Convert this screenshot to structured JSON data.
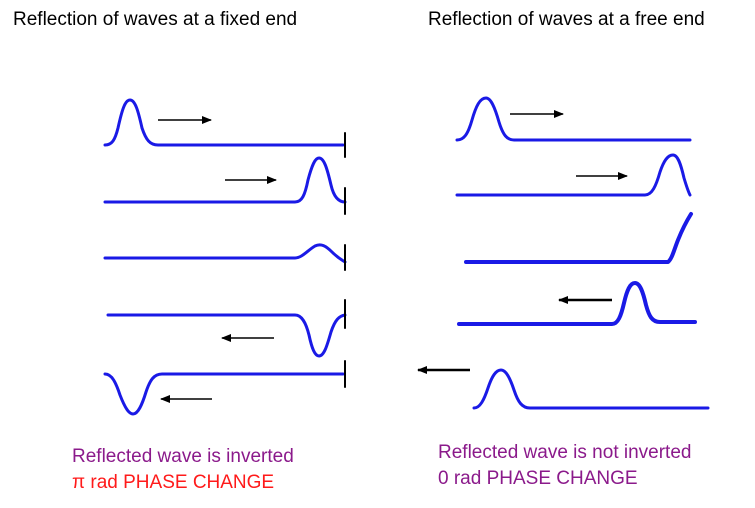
{
  "left_panel": {
    "title": "Reflection of waves at a fixed end",
    "caption_line1": "Reflected wave is inverted",
    "caption_line2_symbol": "π",
    "caption_line2_text": " rad PHASE CHANGE"
  },
  "right_panel": {
    "title": "Reflection of waves at a free end",
    "caption_line1": "Reflected wave is not inverted",
    "caption_line2": "0 rad PHASE CHANGE"
  },
  "colors": {
    "wave": "#1a1ae6",
    "arrow": "#000000",
    "caption_purple": "#8b1a8b",
    "caption_red": "#ff1a1a"
  }
}
